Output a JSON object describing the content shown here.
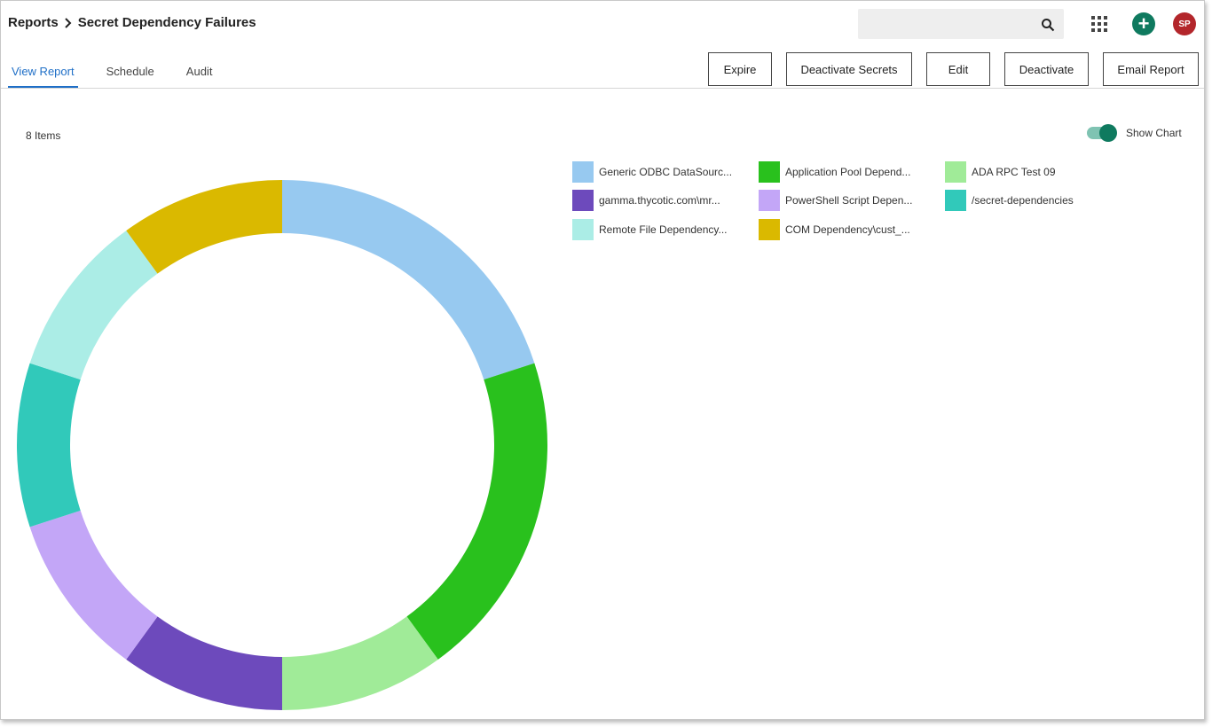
{
  "header": {
    "breadcrumb_root": "Reports",
    "breadcrumb_current": "Secret Dependency Failures",
    "search_placeholder": "",
    "avatar_initials": "SP",
    "add_symbol": "+"
  },
  "tabs": [
    {
      "label": "View Report",
      "active": true
    },
    {
      "label": "Schedule",
      "active": false
    },
    {
      "label": "Audit",
      "active": false
    }
  ],
  "actions": {
    "expire": "Expire",
    "deactivate_secrets": "Deactivate Secrets",
    "edit": "Edit",
    "deactivate": "Deactivate",
    "email_report": "Email Report"
  },
  "report": {
    "item_count": "8 Items",
    "show_chart_label": "Show Chart",
    "show_chart_on": true
  },
  "colors": {
    "accent_green": "#0f7a5f",
    "avatar_red": "#b3262b",
    "tab_active": "#1f6fc7"
  },
  "chart_data": {
    "type": "pie",
    "donut": true,
    "title": "",
    "series": [
      {
        "name": "Generic ODBC DataSourc...",
        "value": 2,
        "color": "#97c9f0"
      },
      {
        "name": "Application Pool Depend...",
        "value": 2,
        "color": "#29c11d"
      },
      {
        "name": "ADA RPC Test 09",
        "value": 1,
        "color": "#a0eb98"
      },
      {
        "name": "gamma.thycotic.com\\mr...",
        "value": 1,
        "color": "#6d4abc"
      },
      {
        "name": "PowerShell Script Depen...",
        "value": 1,
        "color": "#c3a6f7"
      },
      {
        "name": "/secret-dependencies",
        "value": 1,
        "color": "#31c9ba"
      },
      {
        "name": "Remote File Dependency...",
        "value": 1,
        "color": "#abede6"
      },
      {
        "name": "COM Dependency\\cust_...",
        "value": 1,
        "color": "#dab900"
      }
    ],
    "legend_placement": "top-right"
  }
}
